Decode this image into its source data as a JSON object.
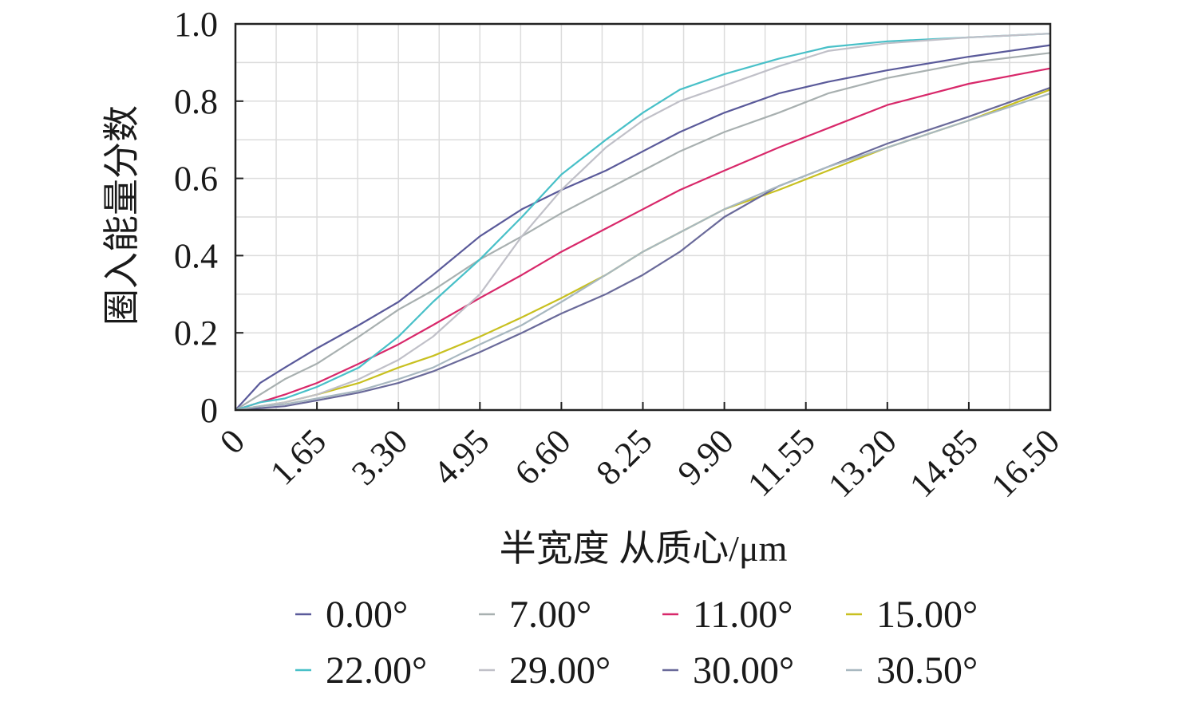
{
  "chart_data": {
    "type": "line",
    "xlabel": "半宽度 从质心/μm",
    "ylabel": "圈入能量分数",
    "xlim": [
      0,
      16.5
    ],
    "ylim": [
      0,
      1.0
    ],
    "x_ticks": [
      "0",
      "1.65",
      "3.30",
      "4.95",
      "6.60",
      "8.25",
      "9.90",
      "11.55",
      "13.20",
      "14.85",
      "16.50"
    ],
    "y_ticks": [
      "0",
      "0.2",
      "0.4",
      "0.6",
      "0.8",
      "1.0"
    ],
    "grid": true,
    "legend_position": "bottom",
    "series": [
      {
        "name": "0.00°",
        "color": "#5a5a9a",
        "x": [
          0,
          0.5,
          1,
          1.65,
          2.5,
          3.3,
          4,
          4.95,
          5.8,
          6.6,
          7.5,
          8.25,
          9.0,
          9.9,
          11.0,
          12.0,
          13.2,
          14.85,
          16.5
        ],
        "y": [
          0,
          0.07,
          0.11,
          0.16,
          0.22,
          0.28,
          0.35,
          0.45,
          0.52,
          0.57,
          0.62,
          0.67,
          0.72,
          0.77,
          0.82,
          0.85,
          0.88,
          0.915,
          0.945
        ]
      },
      {
        "name": "7.00°",
        "color": "#a8b0b0",
        "x": [
          0,
          0.5,
          1,
          1.65,
          2.5,
          3.3,
          4,
          4.95,
          5.8,
          6.6,
          7.5,
          8.25,
          9.0,
          9.9,
          11.0,
          12.0,
          13.2,
          14.85,
          16.5
        ],
        "y": [
          0,
          0.04,
          0.08,
          0.12,
          0.19,
          0.26,
          0.31,
          0.39,
          0.45,
          0.51,
          0.57,
          0.62,
          0.67,
          0.72,
          0.77,
          0.82,
          0.86,
          0.9,
          0.925
        ]
      },
      {
        "name": "11.00°",
        "color": "#d8286a",
        "x": [
          0,
          0.5,
          1,
          1.65,
          2.5,
          3.3,
          4,
          4.95,
          5.8,
          6.6,
          7.5,
          8.25,
          9.0,
          9.9,
          11.0,
          12.0,
          13.2,
          14.85,
          16.5
        ],
        "y": [
          0,
          0.02,
          0.04,
          0.07,
          0.12,
          0.17,
          0.22,
          0.29,
          0.35,
          0.41,
          0.47,
          0.52,
          0.57,
          0.62,
          0.68,
          0.73,
          0.79,
          0.845,
          0.885
        ]
      },
      {
        "name": "15.00°",
        "color": "#c8c020",
        "x": [
          0,
          0.5,
          1,
          1.65,
          2.5,
          3.3,
          4,
          4.95,
          5.8,
          6.6,
          7.5,
          8.25,
          9.0,
          9.9,
          11.0,
          12.0,
          13.2,
          14.85,
          16.5
        ],
        "y": [
          0,
          0.01,
          0.02,
          0.04,
          0.07,
          0.11,
          0.14,
          0.19,
          0.24,
          0.29,
          0.35,
          0.41,
          0.46,
          0.52,
          0.57,
          0.62,
          0.68,
          0.75,
          0.83
        ]
      },
      {
        "name": "22.00°",
        "color": "#48c0c8",
        "x": [
          0,
          0.5,
          1,
          1.65,
          2.5,
          3.3,
          4,
          4.95,
          5.8,
          6.6,
          7.5,
          8.25,
          9.0,
          9.9,
          11.0,
          12.0,
          13.2,
          14.85,
          16.5
        ],
        "y": [
          0,
          0.02,
          0.03,
          0.06,
          0.11,
          0.19,
          0.28,
          0.39,
          0.5,
          0.61,
          0.7,
          0.77,
          0.83,
          0.87,
          0.91,
          0.94,
          0.955,
          0.965,
          0.975
        ]
      },
      {
        "name": "29.00°",
        "color": "#c0c0c8",
        "x": [
          0,
          0.5,
          1,
          1.65,
          2.5,
          3.3,
          4,
          4.95,
          5.8,
          6.6,
          7.5,
          8.25,
          9.0,
          9.9,
          11.0,
          12.0,
          13.2,
          14.85,
          16.5
        ],
        "y": [
          0,
          0.01,
          0.02,
          0.04,
          0.08,
          0.13,
          0.19,
          0.3,
          0.45,
          0.57,
          0.68,
          0.75,
          0.8,
          0.84,
          0.89,
          0.93,
          0.95,
          0.965,
          0.975
        ]
      },
      {
        "name": "30.00°",
        "color": "#6a6a9a",
        "x": [
          0,
          0.5,
          1,
          1.65,
          2.5,
          3.3,
          4,
          4.95,
          5.8,
          6.6,
          7.5,
          8.25,
          9.0,
          9.9,
          11.0,
          12.0,
          13.2,
          14.85,
          16.5
        ],
        "y": [
          0,
          0.005,
          0.01,
          0.025,
          0.045,
          0.07,
          0.1,
          0.15,
          0.2,
          0.25,
          0.3,
          0.35,
          0.41,
          0.5,
          0.58,
          0.63,
          0.69,
          0.76,
          0.835
        ]
      },
      {
        "name": "30.50°",
        "color": "#a8b8c0",
        "x": [
          0,
          0.5,
          1,
          1.65,
          2.5,
          3.3,
          4,
          4.95,
          5.8,
          6.6,
          7.5,
          8.25,
          9.0,
          9.9,
          11.0,
          12.0,
          13.2,
          14.85,
          16.5
        ],
        "y": [
          0,
          0.01,
          0.015,
          0.03,
          0.05,
          0.08,
          0.11,
          0.17,
          0.22,
          0.28,
          0.35,
          0.41,
          0.46,
          0.52,
          0.58,
          0.63,
          0.68,
          0.75,
          0.82
        ]
      }
    ]
  }
}
